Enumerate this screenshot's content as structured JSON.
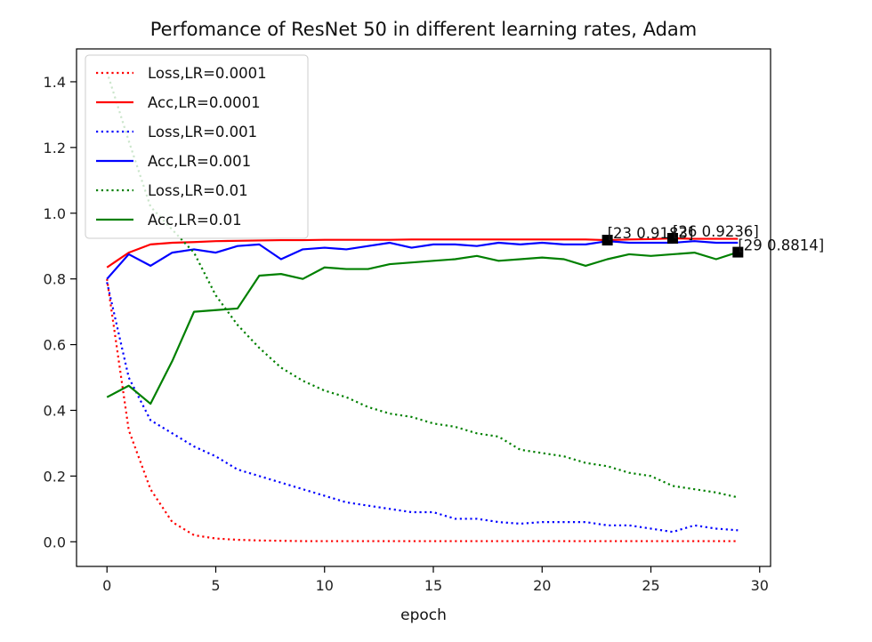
{
  "chart_data": {
    "type": "line",
    "title": "Perfomance of ResNet 50 in different learning rates, Adam",
    "xlabel": "epoch",
    "ylabel": "",
    "xlim": [
      -1.4,
      30.5
    ],
    "ylim": [
      -0.075,
      1.5
    ],
    "x_ticks": [
      0,
      5,
      10,
      15,
      20,
      25,
      30
    ],
    "y_ticks": [
      0.0,
      0.2,
      0.4,
      0.6,
      0.8,
      1.0,
      1.2,
      1.4
    ],
    "x_tick_labels": [
      "0",
      "5",
      "10",
      "15",
      "20",
      "25",
      "30"
    ],
    "y_tick_labels": [
      "0.0",
      "0.2",
      "0.4",
      "0.6",
      "0.8",
      "1.0",
      "1.2",
      "1.4"
    ],
    "legend_position": "upper-left",
    "grid": false,
    "x": [
      0,
      1,
      2,
      3,
      4,
      5,
      6,
      7,
      8,
      9,
      10,
      11,
      12,
      13,
      14,
      15,
      16,
      17,
      18,
      19,
      20,
      21,
      22,
      23,
      24,
      25,
      26,
      27,
      28,
      29
    ],
    "series": [
      {
        "name": "Loss,LR=0.0001",
        "color": "#ff0000",
        "style": "dotted",
        "values": [
          0.8,
          0.34,
          0.16,
          0.06,
          0.02,
          0.01,
          0.006,
          0.004,
          0.003,
          0.002,
          0.002,
          0.002,
          0.002,
          0.002,
          0.002,
          0.002,
          0.002,
          0.002,
          0.002,
          0.002,
          0.002,
          0.002,
          0.002,
          0.002,
          0.002,
          0.002,
          0.002,
          0.002,
          0.002,
          0.002
        ]
      },
      {
        "name": "Acc,LR=0.0001",
        "color": "#ff0000",
        "style": "solid",
        "values": [
          0.835,
          0.88,
          0.905,
          0.91,
          0.912,
          0.915,
          0.916,
          0.917,
          0.918,
          0.918,
          0.919,
          0.919,
          0.919,
          0.919,
          0.92,
          0.92,
          0.92,
          0.92,
          0.92,
          0.92,
          0.92,
          0.92,
          0.92,
          0.918,
          0.92,
          0.921,
          0.9236,
          0.922,
          0.922,
          0.922
        ]
      },
      {
        "name": "Loss,LR=0.001",
        "color": "#0000ff",
        "style": "dotted",
        "values": [
          0.79,
          0.5,
          0.37,
          0.33,
          0.29,
          0.26,
          0.22,
          0.2,
          0.18,
          0.16,
          0.14,
          0.12,
          0.11,
          0.1,
          0.09,
          0.09,
          0.07,
          0.07,
          0.06,
          0.055,
          0.06,
          0.06,
          0.06,
          0.05,
          0.05,
          0.04,
          0.03,
          0.05,
          0.04,
          0.035
        ]
      },
      {
        "name": "Acc,LR=0.001",
        "color": "#0000ff",
        "style": "solid",
        "values": [
          0.8,
          0.875,
          0.84,
          0.88,
          0.89,
          0.88,
          0.9,
          0.905,
          0.86,
          0.89,
          0.895,
          0.89,
          0.9,
          0.91,
          0.895,
          0.905,
          0.905,
          0.9,
          0.91,
          0.905,
          0.91,
          0.905,
          0.905,
          0.915,
          0.91,
          0.91,
          0.91,
          0.915,
          0.91,
          0.91
        ]
      },
      {
        "name": "Loss,LR=0.01",
        "color": "#008000",
        "style": "dotted",
        "values": [
          1.43,
          1.22,
          1.02,
          0.95,
          0.88,
          0.75,
          0.66,
          0.59,
          0.53,
          0.49,
          0.46,
          0.44,
          0.41,
          0.39,
          0.38,
          0.36,
          0.35,
          0.33,
          0.32,
          0.28,
          0.27,
          0.26,
          0.24,
          0.23,
          0.21,
          0.2,
          0.17,
          0.16,
          0.15,
          0.135
        ]
      },
      {
        "name": "Acc,LR=0.01",
        "color": "#008000",
        "style": "solid",
        "values": [
          0.44,
          0.475,
          0.42,
          0.55,
          0.7,
          0.705,
          0.71,
          0.81,
          0.815,
          0.8,
          0.835,
          0.83,
          0.83,
          0.845,
          0.85,
          0.855,
          0.86,
          0.87,
          0.855,
          0.86,
          0.865,
          0.86,
          0.84,
          0.86,
          0.875,
          0.87,
          0.875,
          0.88,
          0.86,
          0.8814
        ]
      }
    ],
    "markers": [
      {
        "x": 23,
        "y": 0.918,
        "label": "[23 0.9183]"
      },
      {
        "x": 26,
        "y": 0.9236,
        "label": "[26 0.9236]"
      },
      {
        "x": 29,
        "y": 0.8814,
        "label": "[29 0.8814]"
      }
    ]
  }
}
